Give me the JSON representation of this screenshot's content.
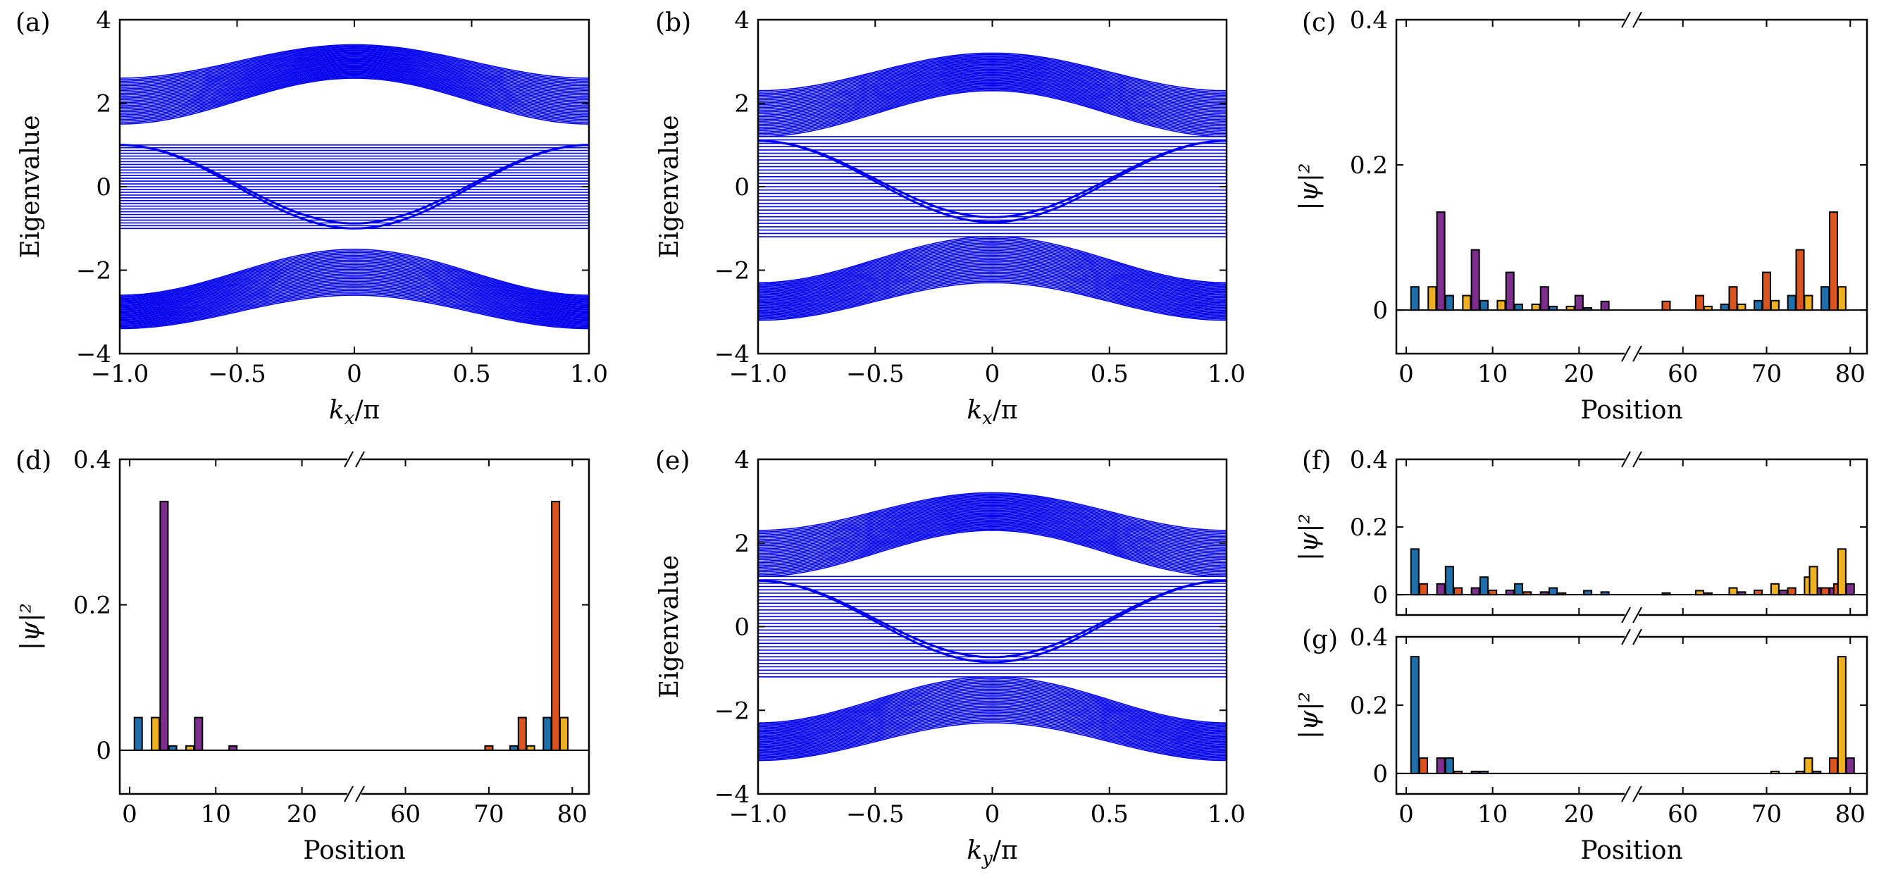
{
  "colors": {
    "band": "#0000ee",
    "bar_blue": "#1f6faa",
    "bar_orange": "#d9541e",
    "bar_yellow": "#edb020",
    "bar_purple": "#7e2f8e"
  },
  "chart_data": [
    {
      "panel": "(a)",
      "type": "line",
      "xlabel": "k_x/π",
      "ylabel": "Eigenvalue",
      "xlim": [
        -1.0,
        1.0
      ],
      "ylim": [
        -4,
        4
      ],
      "x_ticks": [
        "−1.0",
        "−0.5",
        "0",
        "0.5",
        "1.0"
      ],
      "y_ticks": [
        "−4",
        "−2",
        "0",
        "2",
        "4"
      ],
      "bands": [
        {
          "name": "upper",
          "at_zero": [
            2.6,
            3.4
          ],
          "at_edge": [
            1.5,
            2.6
          ]
        },
        {
          "name": "flat",
          "at_zero": [
            -1.0,
            1.0
          ],
          "at_edge": [
            -1.0,
            1.0
          ]
        },
        {
          "name": "lower",
          "at_zero": [
            -2.6,
            -1.5
          ],
          "at_edge": [
            -3.4,
            -2.6
          ]
        }
      ],
      "edge_states": {
        "at_zero": -1.0,
        "at_edge": 1.0
      }
    },
    {
      "panel": "(b)",
      "type": "line",
      "xlabel": "k_x/π",
      "ylabel": "Eigenvalue",
      "xlim": [
        -1.0,
        1.0
      ],
      "ylim": [
        -4,
        4
      ],
      "x_ticks": [
        "−1.0",
        "−0.5",
        "0",
        "0.5",
        "1.0"
      ],
      "y_ticks": [
        "−4",
        "−2",
        "0",
        "2",
        "4"
      ],
      "bands": [
        {
          "name": "upper",
          "at_zero": [
            2.3,
            3.2
          ],
          "at_edge": [
            1.2,
            2.3
          ]
        },
        {
          "name": "flat",
          "at_zero": [
            -1.2,
            1.2
          ],
          "at_edge": [
            -1.2,
            1.2
          ]
        },
        {
          "name": "lower",
          "at_zero": [
            -2.3,
            -1.2
          ],
          "at_edge": [
            -3.2,
            -2.3
          ]
        }
      ],
      "edge_states": {
        "at_zero": -0.85,
        "at_edge": 1.1
      }
    },
    {
      "panel": "(e)",
      "type": "line",
      "xlabel": "k_y/π",
      "ylabel": "Eigenvalue",
      "xlim": [
        -1.0,
        1.0
      ],
      "ylim": [
        -4,
        4
      ],
      "x_ticks": [
        "−1.0",
        "−0.5",
        "0",
        "0.5",
        "1.0"
      ],
      "y_ticks": [
        "−4",
        "−2",
        "0",
        "2",
        "4"
      ],
      "bands": [
        {
          "name": "upper",
          "at_zero": [
            2.3,
            3.2
          ],
          "at_edge": [
            1.2,
            2.3
          ]
        },
        {
          "name": "flat",
          "at_zero": [
            -1.2,
            1.2
          ],
          "at_edge": [
            -1.2,
            1.2
          ]
        },
        {
          "name": "lower",
          "at_zero": [
            -2.3,
            -1.2
          ],
          "at_edge": [
            -3.2,
            -2.3
          ]
        }
      ],
      "edge_states": {
        "at_zero": -0.85,
        "at_edge": 1.1
      }
    },
    {
      "panel": "(c)",
      "type": "bar",
      "xlabel": "Position",
      "ylabel": "|ψ|²",
      "ylim": [
        -0.06,
        0.4
      ],
      "y_ticks": [
        {
          "v": 0,
          "t": "0"
        },
        {
          "v": 0.2,
          "t": "0.2"
        },
        {
          "v": 0.4,
          "t": "0.4"
        }
      ],
      "x_ticks": [
        {
          "v": 0,
          "t": "0"
        },
        {
          "v": 10,
          "t": "10"
        },
        {
          "v": 20,
          "t": "20"
        },
        {
          "v": 60,
          "t": "60"
        },
        {
          "v": 70,
          "t": "70"
        },
        {
          "v": 80,
          "t": "80"
        }
      ],
      "bars": [
        [
          1,
          "bar_blue",
          0.032
        ],
        [
          3,
          "bar_yellow",
          0.032
        ],
        [
          4,
          "bar_purple",
          0.135
        ],
        [
          5,
          "bar_blue",
          0.02
        ],
        [
          7,
          "bar_yellow",
          0.02
        ],
        [
          8,
          "bar_purple",
          0.083
        ],
        [
          9,
          "bar_blue",
          0.013
        ],
        [
          11,
          "bar_yellow",
          0.013
        ],
        [
          12,
          "bar_purple",
          0.052
        ],
        [
          13,
          "bar_blue",
          0.008
        ],
        [
          15,
          "bar_yellow",
          0.008
        ],
        [
          16,
          "bar_purple",
          0.032
        ],
        [
          17,
          "bar_blue",
          0.005
        ],
        [
          19,
          "bar_yellow",
          0.005
        ],
        [
          20,
          "bar_purple",
          0.02
        ],
        [
          21,
          "bar_blue",
          0.003
        ],
        [
          23,
          "bar_purple",
          0.012
        ],
        [
          58,
          "bar_orange",
          0.012
        ],
        [
          62,
          "bar_orange",
          0.02
        ],
        [
          63,
          "bar_yellow",
          0.005
        ],
        [
          65,
          "bar_blue",
          0.008
        ],
        [
          66,
          "bar_orange",
          0.032
        ],
        [
          67,
          "bar_yellow",
          0.008
        ],
        [
          69,
          "bar_blue",
          0.013
        ],
        [
          70,
          "bar_orange",
          0.052
        ],
        [
          71,
          "bar_yellow",
          0.013
        ],
        [
          73,
          "bar_blue",
          0.02
        ],
        [
          74,
          "bar_orange",
          0.083
        ],
        [
          75,
          "bar_yellow",
          0.02
        ],
        [
          77,
          "bar_blue",
          0.032
        ],
        [
          78,
          "bar_orange",
          0.135
        ],
        [
          79,
          "bar_yellow",
          0.032
        ]
      ]
    },
    {
      "panel": "(d)",
      "type": "bar",
      "xlabel": "Position",
      "ylabel": "|ψ|²",
      "ylim": [
        -0.06,
        0.4
      ],
      "y_ticks": [
        {
          "v": 0,
          "t": "0"
        },
        {
          "v": 0.2,
          "t": "0.2"
        },
        {
          "v": 0.4,
          "t": "0.4"
        }
      ],
      "x_ticks": [
        {
          "v": 0,
          "t": "0"
        },
        {
          "v": 10,
          "t": "10"
        },
        {
          "v": 20,
          "t": "20"
        },
        {
          "v": 60,
          "t": "60"
        },
        {
          "v": 70,
          "t": "70"
        },
        {
          "v": 80,
          "t": "80"
        }
      ],
      "bars": [
        [
          1,
          "bar_blue",
          0.045
        ],
        [
          3,
          "bar_yellow",
          0.045
        ],
        [
          4,
          "bar_purple",
          0.342
        ],
        [
          5,
          "bar_blue",
          0.006
        ],
        [
          7,
          "bar_yellow",
          0.006
        ],
        [
          8,
          "bar_purple",
          0.045
        ],
        [
          12,
          "bar_purple",
          0.006
        ],
        [
          70,
          "bar_orange",
          0.006
        ],
        [
          73,
          "bar_blue",
          0.006
        ],
        [
          74,
          "bar_orange",
          0.045
        ],
        [
          75,
          "bar_yellow",
          0.006
        ],
        [
          77,
          "bar_blue",
          0.045
        ],
        [
          78,
          "bar_orange",
          0.342
        ],
        [
          79,
          "bar_yellow",
          0.045
        ]
      ]
    },
    {
      "panel": "(f)",
      "type": "bar",
      "xlabel": "",
      "ylabel": "|ψ|²",
      "ylim": [
        -0.06,
        0.4
      ],
      "y_ticks": [
        {
          "v": 0,
          "t": "0"
        },
        {
          "v": 0.2,
          "t": "0.2"
        },
        {
          "v": 0.4,
          "t": "0.4"
        }
      ],
      "x_ticks": [
        {
          "v": 0,
          "t": ""
        },
        {
          "v": 10,
          "t": ""
        },
        {
          "v": 20,
          "t": ""
        },
        {
          "v": 60,
          "t": ""
        },
        {
          "v": 70,
          "t": ""
        },
        {
          "v": 80,
          "t": ""
        }
      ],
      "bars": [
        [
          1,
          "bar_blue",
          0.135
        ],
        [
          2,
          "bar_orange",
          0.032
        ],
        [
          4,
          "bar_purple",
          0.032
        ],
        [
          5,
          "bar_blue",
          0.083
        ],
        [
          6,
          "bar_orange",
          0.02
        ],
        [
          8,
          "bar_purple",
          0.02
        ],
        [
          9,
          "bar_blue",
          0.052
        ],
        [
          10,
          "bar_orange",
          0.013
        ],
        [
          12,
          "bar_purple",
          0.013
        ],
        [
          13,
          "bar_blue",
          0.032
        ],
        [
          14,
          "bar_orange",
          0.008
        ],
        [
          16,
          "bar_purple",
          0.008
        ],
        [
          17,
          "bar_blue",
          0.02
        ],
        [
          18,
          "bar_orange",
          0.005
        ],
        [
          21,
          "bar_blue",
          0.012
        ],
        [
          23,
          "bar_blue",
          0.008
        ],
        [
          58,
          "bar_blue",
          0.005
        ],
        [
          62,
          "bar_yellow",
          0.012
        ],
        [
          63,
          "bar_purple",
          0.005
        ],
        [
          66,
          "bar_yellow",
          0.02
        ],
        [
          67,
          "bar_purple",
          0.008
        ],
        [
          69,
          "bar_orange",
          0.013
        ],
        [
          71,
          "bar_yellow",
          0.032
        ],
        [
          72,
          "bar_purple",
          0.013
        ],
        [
          73,
          "bar_orange",
          0.02
        ],
        [
          75,
          "bar_yellow",
          0.052
        ],
        [
          76,
          "bar_purple",
          0.02
        ],
        [
          77,
          "bar_orange",
          0.02
        ],
        [
          75.6,
          "bar_yellow",
          0.083
        ],
        [
          78,
          "bar_purple",
          0.02
        ],
        [
          78.5,
          "bar_orange",
          0.032
        ],
        [
          79,
          "bar_yellow",
          0.135
        ],
        [
          80,
          "bar_purple",
          0.032
        ]
      ]
    },
    {
      "panel": "(g)",
      "type": "bar",
      "xlabel": "Position",
      "ylabel": "|ψ|²",
      "ylim": [
        -0.06,
        0.4
      ],
      "y_ticks": [
        {
          "v": 0,
          "t": "0"
        },
        {
          "v": 0.2,
          "t": "0.2"
        },
        {
          "v": 0.4,
          "t": "0.4"
        }
      ],
      "x_ticks": [
        {
          "v": 0,
          "t": "0"
        },
        {
          "v": 10,
          "t": "10"
        },
        {
          "v": 20,
          "t": "20"
        },
        {
          "v": 60,
          "t": "60"
        },
        {
          "v": 70,
          "t": "70"
        },
        {
          "v": 80,
          "t": "80"
        }
      ],
      "bars": [
        [
          1,
          "bar_blue",
          0.342
        ],
        [
          2,
          "bar_orange",
          0.045
        ],
        [
          4,
          "bar_purple",
          0.045
        ],
        [
          5,
          "bar_blue",
          0.045
        ],
        [
          6,
          "bar_orange",
          0.006
        ],
        [
          8,
          "bar_purple",
          0.006
        ],
        [
          9,
          "bar_blue",
          0.006
        ],
        [
          71,
          "bar_yellow",
          0.006
        ],
        [
          74,
          "bar_orange",
          0.006
        ],
        [
          75,
          "bar_yellow",
          0.045
        ],
        [
          76,
          "bar_purple",
          0.006
        ],
        [
          78,
          "bar_orange",
          0.045
        ],
        [
          79,
          "bar_yellow",
          0.342
        ],
        [
          80,
          "bar_purple",
          0.045
        ]
      ]
    }
  ]
}
